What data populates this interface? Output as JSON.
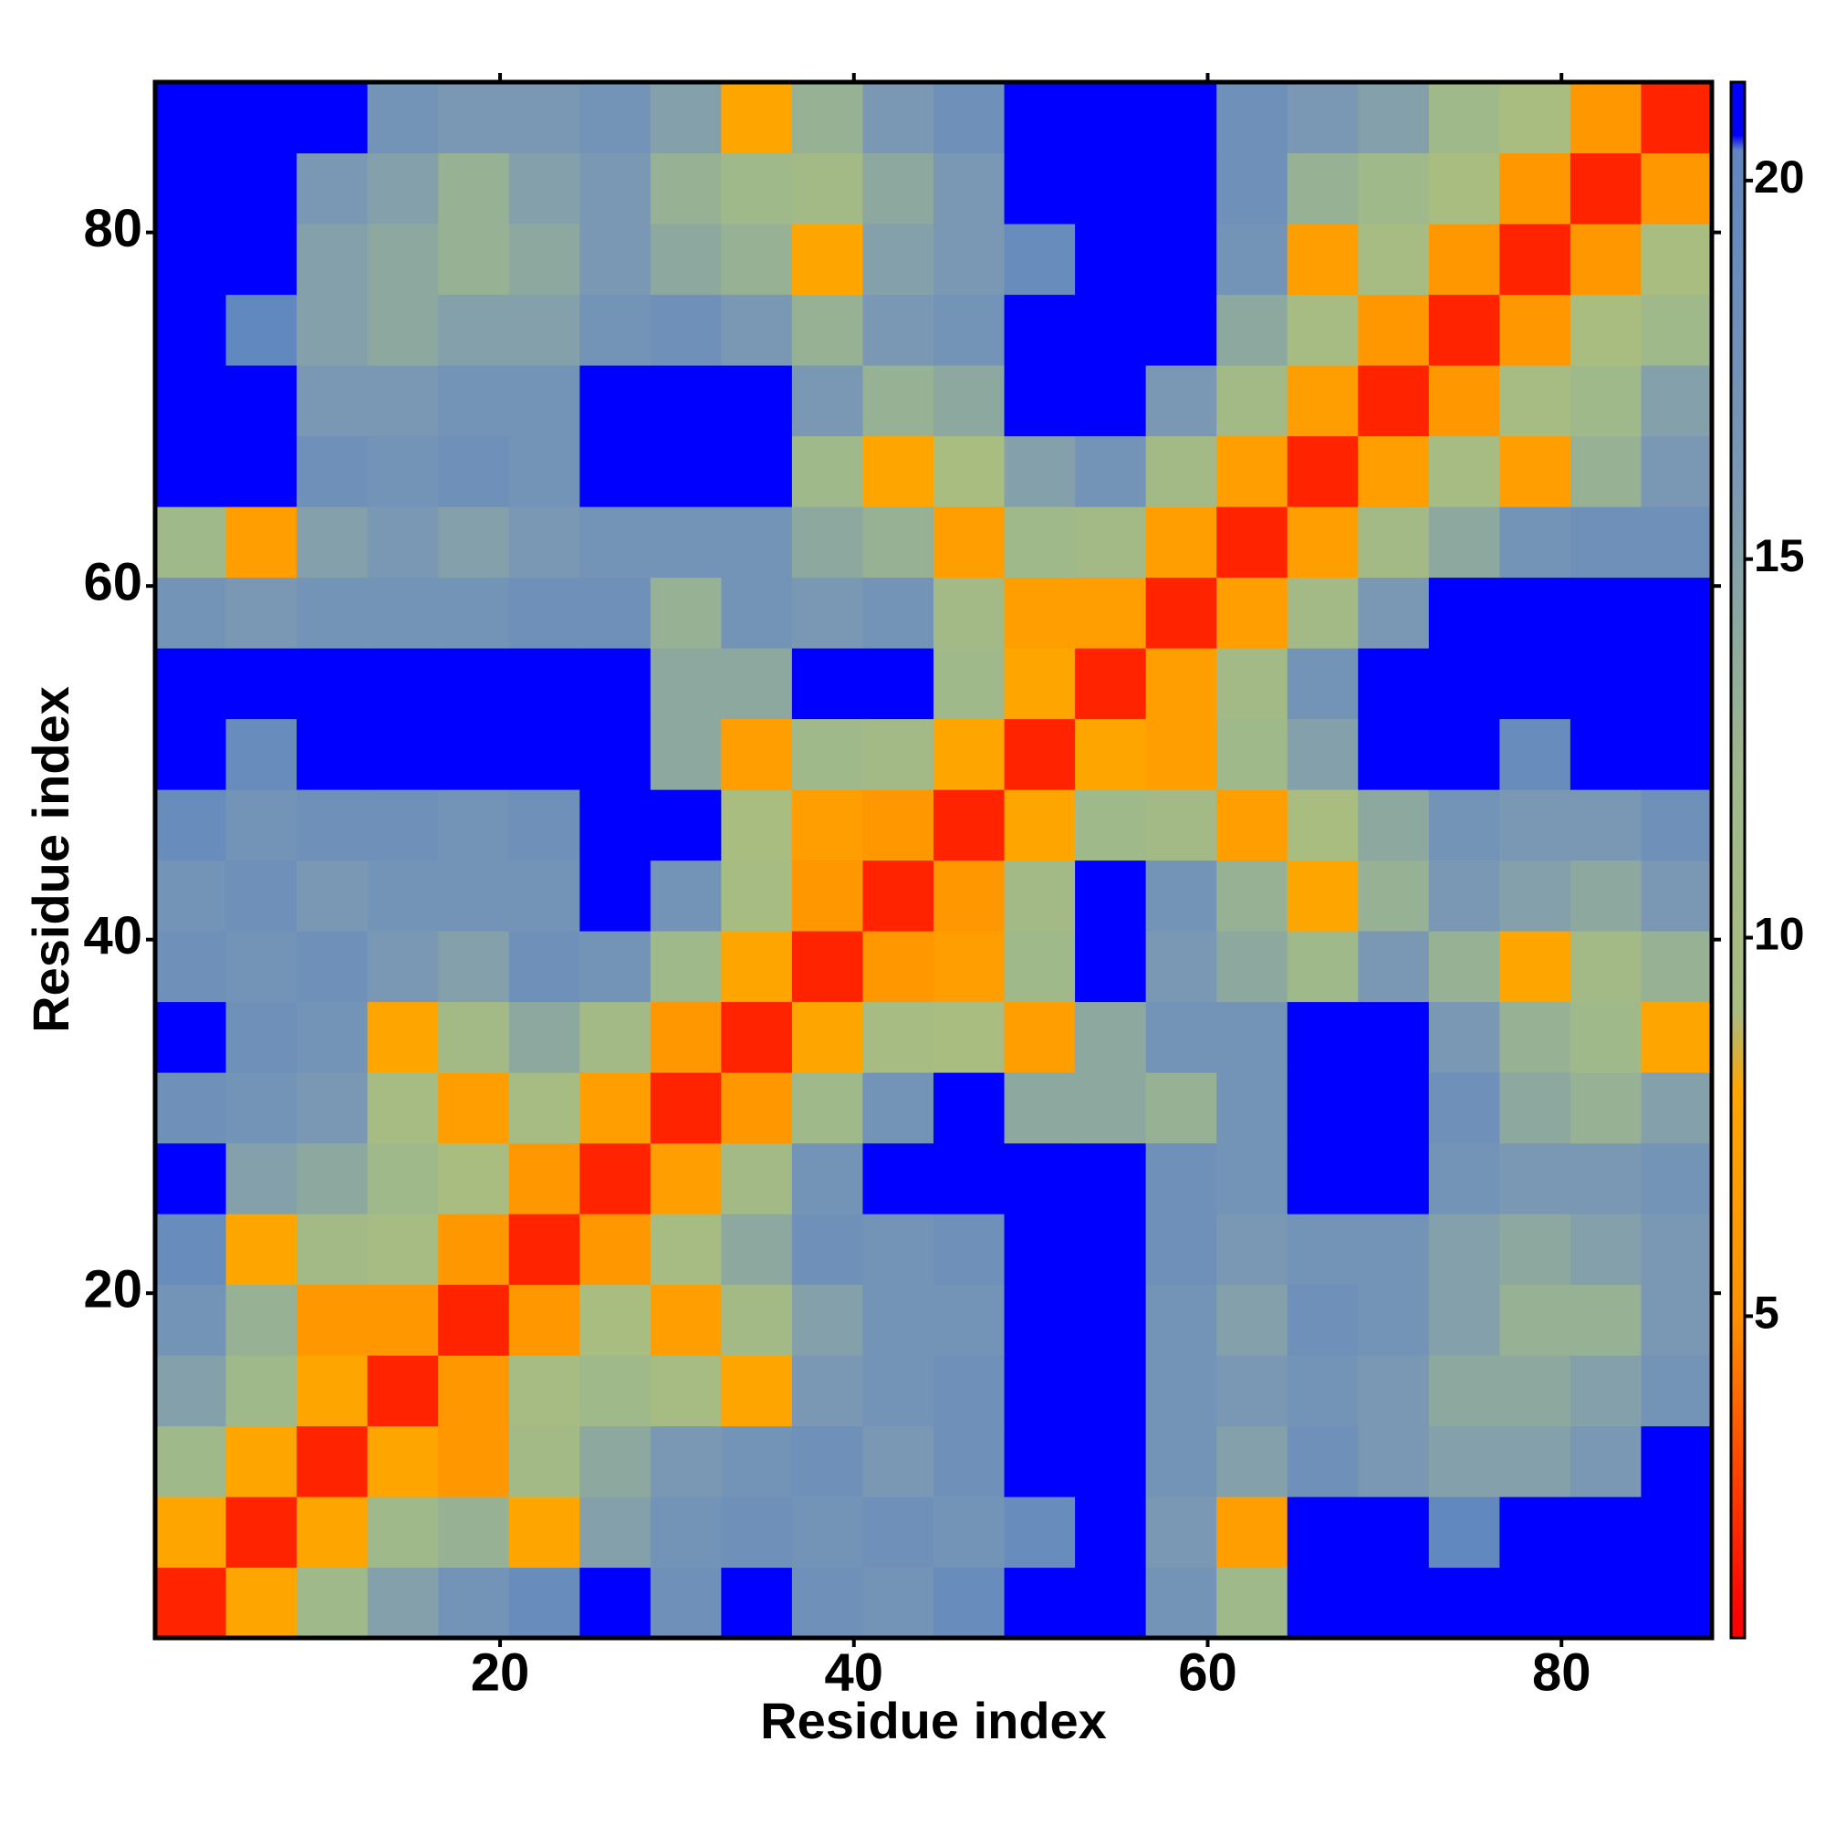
{
  "chart_data": {
    "type": "heatmap",
    "x_label": "Residue index",
    "y_label": "Residue index",
    "xbins": [
      0.5,
      4.5,
      8.5,
      12.5,
      16.5,
      20.5,
      24.5,
      28.5,
      32.5,
      36.5,
      40.5,
      44.5,
      48.5,
      52.5,
      56.5,
      60.5,
      64.5,
      68.5,
      72.5,
      76.5,
      80.5,
      84.5,
      88.5
    ],
    "ybins": [
      0.5,
      4.5,
      8.5,
      12.5,
      16.5,
      20.5,
      24.5,
      28.5,
      32.5,
      36.5,
      40.5,
      44.5,
      48.5,
      52.5,
      56.5,
      60.5,
      64.5,
      68.5,
      72.5,
      76.5,
      80.5,
      84.5,
      88.5
    ],
    "values": [
      [
        2,
        8,
        12,
        15,
        17,
        19,
        21,
        18,
        21,
        18,
        17,
        19,
        21,
        21,
        17,
        12,
        21,
        21,
        21,
        21,
        21,
        21
      ],
      [
        8,
        2,
        8,
        12,
        13,
        8,
        15,
        17,
        18,
        17,
        18,
        17,
        19,
        21,
        16,
        7,
        21,
        21,
        20,
        21,
        21,
        21
      ],
      [
        12,
        8,
        2,
        8,
        6,
        11,
        14,
        16,
        17,
        18,
        16,
        18,
        21,
        21,
        17,
        15,
        18,
        16,
        15,
        15,
        16,
        21
      ],
      [
        15,
        12,
        8,
        2,
        6,
        10,
        12,
        10,
        8,
        16,
        17,
        18,
        21,
        21,
        17,
        16,
        17,
        16,
        14,
        14,
        15,
        17
      ],
      [
        17,
        13,
        6,
        6,
        2,
        6,
        9,
        7,
        11,
        15,
        17,
        17,
        21,
        21,
        17,
        15,
        18,
        17,
        15,
        13,
        13,
        16
      ],
      [
        19,
        8,
        11,
        10,
        6,
        2,
        6,
        10,
        14,
        18,
        17,
        18,
        21,
        21,
        18,
        16,
        17,
        17,
        15,
        14,
        15,
        16
      ],
      [
        21,
        15,
        14,
        12,
        9,
        6,
        2,
        7,
        11,
        17,
        21,
        21,
        21,
        21,
        18,
        17,
        21,
        21,
        17,
        16,
        16,
        17
      ],
      [
        18,
        17,
        16,
        10,
        7,
        10,
        7,
        2,
        6,
        12,
        17,
        21,
        14,
        14,
        13,
        17,
        21,
        21,
        18,
        14,
        13,
        15
      ],
      [
        21,
        18,
        17,
        8,
        11,
        14,
        11,
        6,
        2,
        8,
        10,
        9,
        7,
        14,
        17,
        17,
        21,
        21,
        16,
        13,
        12,
        8
      ],
      [
        18,
        17,
        18,
        16,
        15,
        18,
        17,
        12,
        8,
        2,
        6,
        7,
        12,
        21,
        16,
        14,
        12,
        16,
        13,
        8,
        11,
        13
      ],
      [
        17,
        18,
        16,
        17,
        17,
        17,
        21,
        17,
        10,
        6,
        2,
        6,
        11,
        21,
        17,
        13,
        8,
        13,
        16,
        15,
        14,
        16
      ],
      [
        19,
        17,
        18,
        18,
        17,
        18,
        21,
        21,
        9,
        7,
        6,
        2,
        8,
        12,
        11,
        7,
        9,
        14,
        17,
        16,
        16,
        18
      ],
      [
        21,
        19,
        21,
        21,
        21,
        21,
        21,
        14,
        7,
        12,
        11,
        8,
        2,
        8,
        7,
        12,
        15,
        21,
        21,
        19,
        21,
        21
      ],
      [
        21,
        21,
        21,
        21,
        21,
        21,
        21,
        14,
        14,
        21,
        21,
        12,
        8,
        2,
        7,
        11,
        17,
        21,
        21,
        21,
        21,
        21
      ],
      [
        17,
        16,
        17,
        17,
        17,
        18,
        18,
        13,
        17,
        16,
        17,
        11,
        7,
        7,
        2,
        7,
        11,
        16,
        21,
        21,
        21,
        21
      ],
      [
        12,
        7,
        15,
        16,
        15,
        16,
        17,
        17,
        17,
        14,
        13,
        7,
        12,
        11,
        7,
        2,
        7,
        11,
        14,
        17,
        18,
        18
      ],
      [
        21,
        21,
        18,
        17,
        18,
        17,
        21,
        21,
        21,
        12,
        8,
        9,
        15,
        17,
        11,
        7,
        2,
        7,
        10,
        7,
        13,
        16
      ],
      [
        21,
        21,
        16,
        16,
        17,
        17,
        21,
        21,
        21,
        16,
        13,
        14,
        21,
        21,
        16,
        11,
        7,
        2,
        6,
        10,
        12,
        15
      ],
      [
        21,
        20,
        15,
        14,
        15,
        15,
        17,
        18,
        16,
        13,
        16,
        17,
        21,
        21,
        21,
        14,
        10,
        6,
        2,
        6,
        9,
        12
      ],
      [
        21,
        21,
        15,
        14,
        13,
        14,
        16,
        14,
        13,
        8,
        15,
        16,
        19,
        21,
        21,
        17,
        7,
        10,
        6,
        2,
        6,
        9
      ],
      [
        21,
        21,
        16,
        15,
        13,
        15,
        16,
        13,
        12,
        11,
        14,
        16,
        21,
        21,
        21,
        18,
        13,
        12,
        9,
        6,
        2,
        6
      ],
      [
        21,
        21,
        21,
        17,
        16,
        16,
        17,
        15,
        8,
        13,
        16,
        18,
        21,
        21,
        21,
        18,
        16,
        15,
        12,
        9,
        6,
        2
      ]
    ],
    "xlim": [
      0.5,
      88.5
    ],
    "ylim": [
      0.5,
      88.5
    ],
    "xticks": [
      20,
      40,
      60,
      80
    ],
    "yticks": [
      20,
      40,
      60,
      80
    ],
    "colorbar": {
      "zlim": [
        0.75,
        21.3
      ],
      "ticks": [
        5,
        10,
        15,
        20
      ]
    },
    "colorscale": [
      [
        1,
        "#ff0000"
      ],
      [
        3,
        "#ff4500"
      ],
      [
        5,
        "#ff9000"
      ],
      [
        8,
        "#ffa500"
      ],
      [
        9,
        "#a9bd80"
      ],
      [
        12,
        "#a0b98a"
      ],
      [
        16,
        "#7a98b4"
      ],
      [
        20.4,
        "#5f86c0"
      ],
      [
        20.6,
        "#0000ff"
      ],
      [
        21,
        "#0000ff"
      ]
    ]
  }
}
